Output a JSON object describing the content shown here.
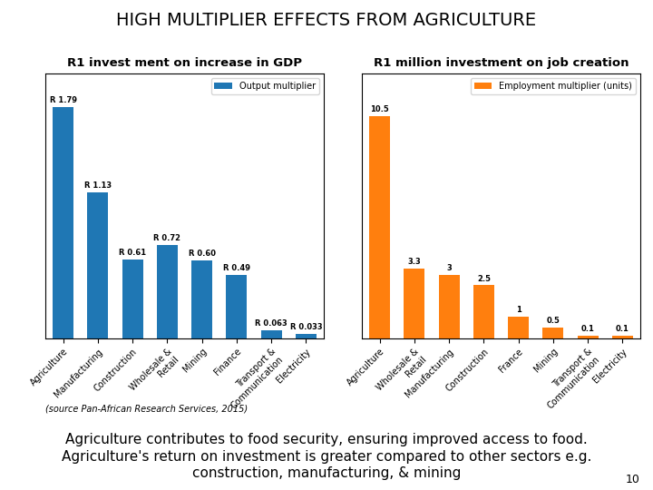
{
  "title": "HIGH MULTIPLIER EFFECTS FROM AGRICULTURE",
  "chart_data": [
    {
      "type": "bar",
      "subtitle": "R1 invest ment on increase in GDP",
      "categories": [
        "Agriculture",
        "Manufacturing",
        "Construction",
        "Wholesale &\nRetail",
        "Mining",
        "Finance",
        "Transport &\nCommunication",
        "Electricity"
      ],
      "series": [
        {
          "name": "Output multiplier",
          "values": [
            1.79,
            1.13,
            0.61,
            0.72,
            0.6,
            0.49,
            0.063,
            0.033
          ],
          "value_labels": [
            "R 1.79",
            "R 1.13",
            "R 0.61",
            "R 0.72",
            "R 0.60",
            "R 0.49",
            "R 0.063",
            "R 0.033"
          ]
        }
      ],
      "ylim": [
        0,
        2.05
      ],
      "data_labels": true,
      "tick_labels": "x",
      "legend": "upper right"
    },
    {
      "type": "bar",
      "subtitle": "R1 million investment on job creation",
      "categories": [
        "Agriculture",
        "Wholesale &\nRetail",
        "Manufacturing",
        "Construction",
        "France",
        "Mining",
        "Transport &\nCommunication",
        "Electricity"
      ],
      "series": [
        {
          "name": "Employment multiplier (units)",
          "values": [
            10.5,
            3.3,
            3.0,
            2.5,
            1.0,
            0.5,
            0.1,
            0.1
          ],
          "value_labels": [
            "10.5",
            "3.3",
            "3",
            "2.5",
            "1",
            "0.5",
            "0.1",
            "0.1"
          ]
        }
      ],
      "ylim": [
        0,
        12.5
      ],
      "data_labels": true,
      "tick_labels": "x",
      "legend": "upper right"
    }
  ],
  "annotations": [
    "(source Pan-African Research Services, 2015)",
    "Agriculture contributes to food security, ensuring improved access to food.\nAgriculture's return on investment is greater compared to other sectors e.g.\nconstruction, manufacturing, & mining",
    "10"
  ]
}
